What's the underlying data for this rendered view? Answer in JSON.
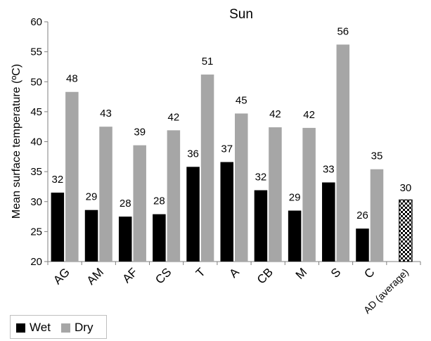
{
  "chart_data": {
    "type": "bar",
    "title": "Sun",
    "ylabel": "Mean surface temperature (ºC)",
    "xlabel": "",
    "ylim": [
      20,
      60
    ],
    "yticks": [
      20,
      25,
      30,
      35,
      40,
      45,
      50,
      55,
      60
    ],
    "grid": false,
    "legend_position": "bottom-left",
    "categories": [
      "AG",
      "AM",
      "AF",
      "CS",
      "T",
      "A",
      "CB",
      "M",
      "S",
      "C",
      "AD (average)"
    ],
    "series": [
      {
        "name": "Wet",
        "color": "#000000",
        "values": [
          31.5,
          28.6,
          27.5,
          27.9,
          35.8,
          36.6,
          31.9,
          28.5,
          33.2,
          25.5,
          null
        ],
        "labels": [
          "32",
          "29",
          "28",
          "28",
          "36",
          "37",
          "32",
          "29",
          "33",
          "26",
          ""
        ]
      },
      {
        "name": "Dry",
        "color": "#a6a6a6",
        "values": [
          48.3,
          42.5,
          39.4,
          41.9,
          51.2,
          44.7,
          42.4,
          42.3,
          56.2,
          35.4,
          null
        ],
        "labels": [
          "48",
          "43",
          "39",
          "42",
          "51",
          "45",
          "42",
          "42",
          "56",
          "35",
          ""
        ]
      }
    ],
    "average_bar": {
      "category": "AD (average)",
      "value": 30.3,
      "label": "30",
      "pattern": "checker"
    }
  }
}
